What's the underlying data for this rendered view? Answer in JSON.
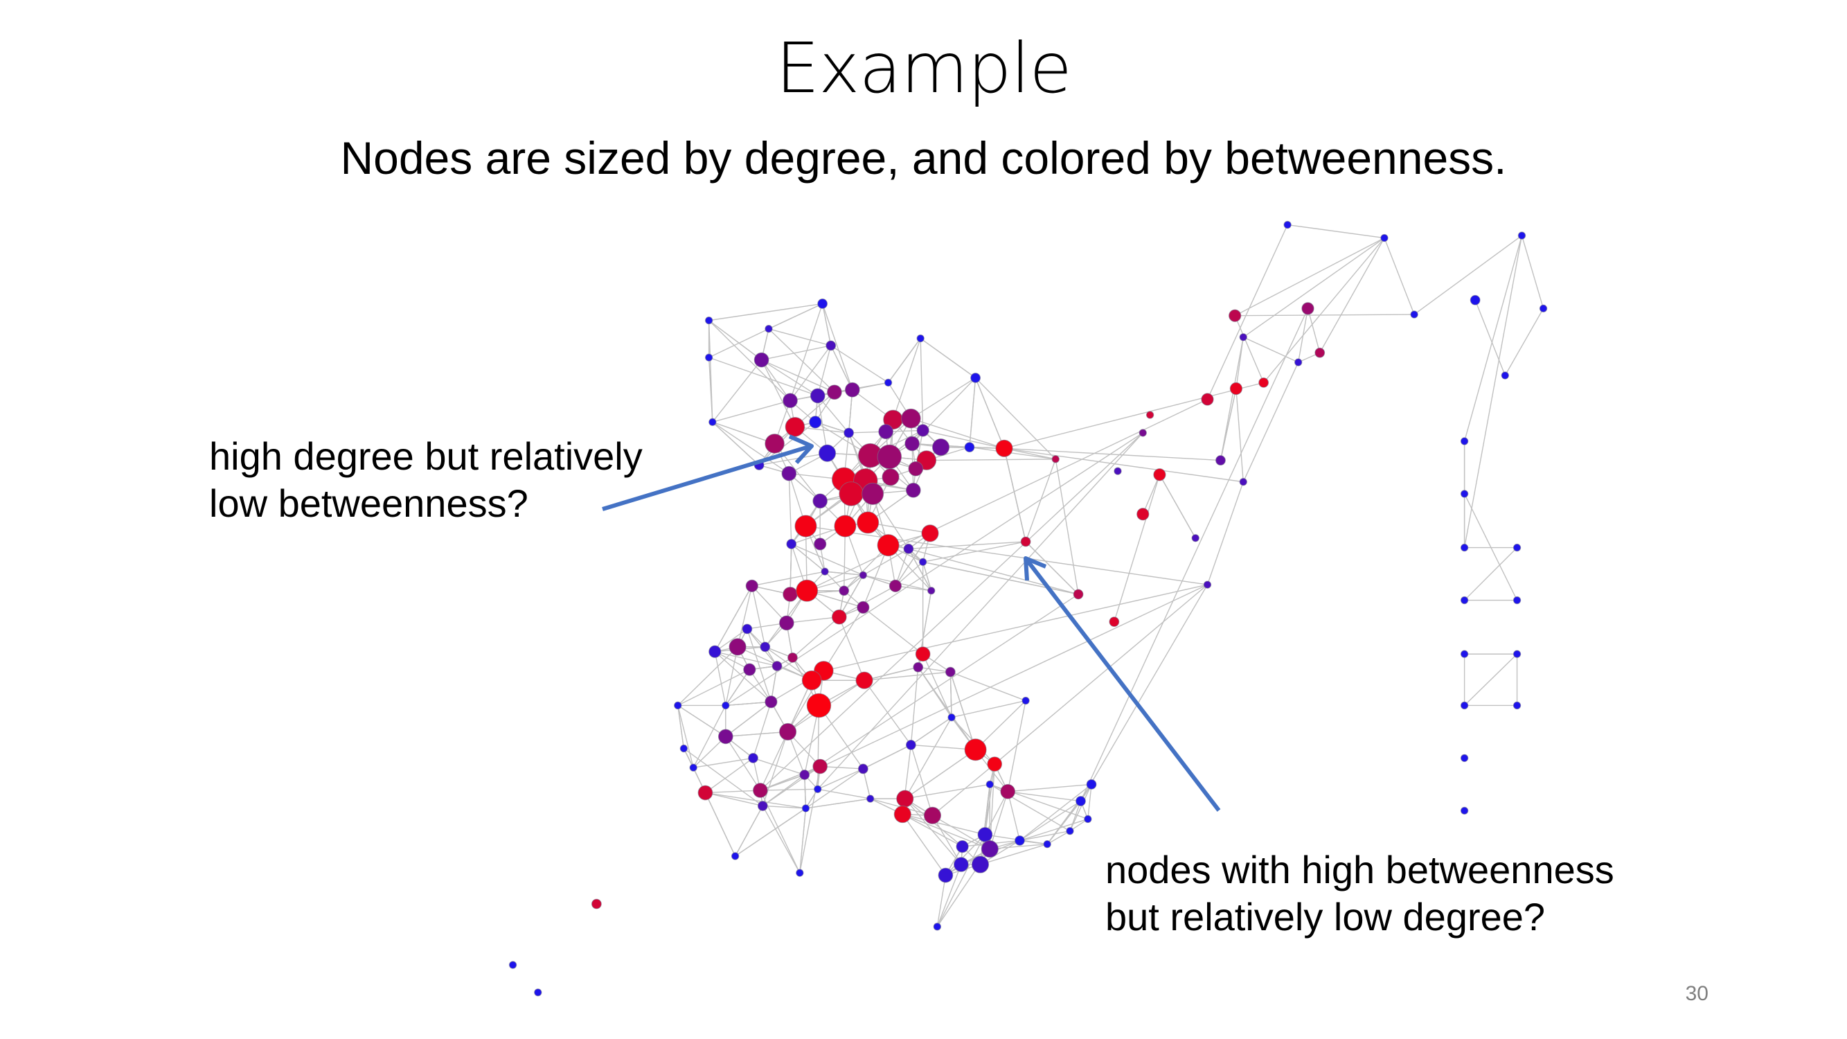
{
  "slide": {
    "title": "Example",
    "subtitle": "Nodes are sized by degree, and colored by betweenness.",
    "page_number": "30"
  },
  "annotations": {
    "left": [
      "high degree but relatively",
      "low betweenness?"
    ],
    "right": [
      "nodes with high betweenness",
      "but relatively low degree?"
    ]
  },
  "colors": {
    "low_betweenness": "#1a1aff",
    "high_betweenness": "#ff0000",
    "edge": "#c0c0c0",
    "arrow": "#4472c4"
  }
}
